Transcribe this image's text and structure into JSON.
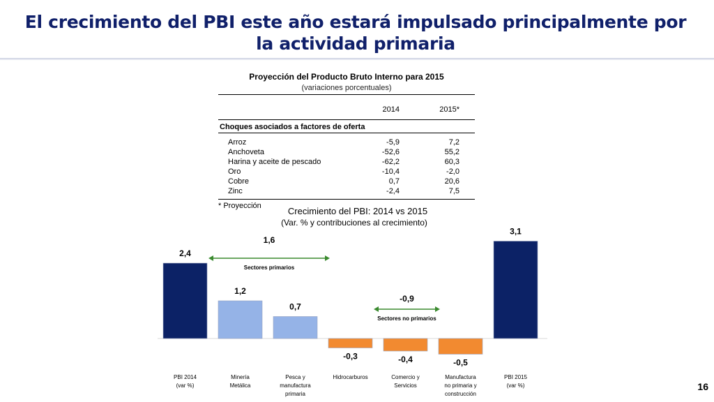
{
  "slide": {
    "title": "El crecimiento del PBI este año estará impulsado principalmente por la actividad primaria",
    "page_number": "16"
  },
  "table": {
    "title": "Proyección del Producto Bruto Interno para 2015",
    "subtitle": "(variaciones porcentuales)",
    "col_headers": [
      "2014",
      "2015*"
    ],
    "section_label": "Choques asociados a factores de oferta",
    "rows": [
      {
        "label": "Arroz",
        "v2014": "-5,9",
        "v2015": "7,2"
      },
      {
        "label": "Anchoveta",
        "v2014": "-52,6",
        "v2015": "55,2"
      },
      {
        "label": "Harina y aceite de pescado",
        "v2014": "-62,2",
        "v2015": "60,3"
      },
      {
        "label": "Oro",
        "v2014": "-10,4",
        "v2015": "-2,0"
      },
      {
        "label": "Cobre",
        "v2014": "0,7",
        "v2015": "20,6"
      },
      {
        "label": "Zinc",
        "v2014": "-2,4",
        "v2015": "7,5"
      }
    ],
    "footnote": "* Proyección"
  },
  "chart_data": {
    "type": "bar",
    "title": "Crecimiento del PBI: 2014 vs 2015",
    "subtitle": "(Var. % y contribuciones al crecimiento)",
    "categories": [
      [
        "PBI 2014",
        "(var %)"
      ],
      [
        "Minería",
        "Metálica"
      ],
      [
        "Pesca y",
        "manufactura",
        "primaria"
      ],
      [
        "Hidrocarburos"
      ],
      [
        "Comercio y",
        "Servicios"
      ],
      [
        "Manufactura",
        "no primaria y",
        "construcción"
      ],
      [
        "PBI 2015",
        "(var %)"
      ]
    ],
    "values": [
      2.4,
      1.2,
      0.7,
      -0.3,
      -0.4,
      -0.5,
      3.1
    ],
    "value_labels": [
      "2,4",
      "1,2",
      "0,7",
      "-0,3",
      "-0,4",
      "-0,5",
      "3,1"
    ],
    "colors": [
      "#0c2266",
      "#95b3e7",
      "#95b3e7",
      "#f28a30",
      "#f28a30",
      "#f28a30",
      "#0c2266"
    ],
    "annotations": [
      {
        "text": "Sectores primarios",
        "total": "1,6",
        "from": 1,
        "to": 3
      },
      {
        "text": "Sectores no primarios",
        "total": "-0,9",
        "from": 4,
        "to": 5
      }
    ],
    "arrow_color": "#3a8a2e"
  }
}
